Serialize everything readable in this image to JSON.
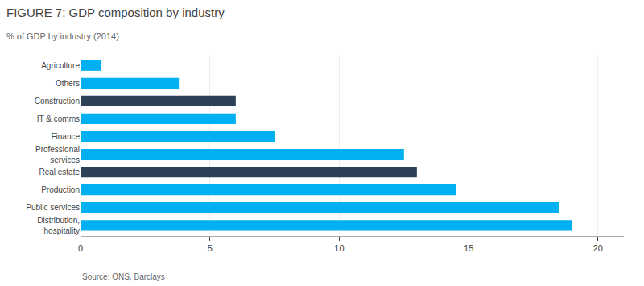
{
  "chart_data": {
    "type": "bar",
    "orientation": "horizontal",
    "title": "FIGURE 7: GDP composition by industry",
    "subtitle": "% of GDP by industry (2014)",
    "annotations": [
      "Source: ONS, Barclays"
    ],
    "categories": [
      "Distribution,\nhospitality",
      "Public services",
      "Production",
      "Real estate",
      "Professional\nservices",
      "Finance",
      "IT & comms",
      "Construction",
      "Others",
      "Agriculture"
    ],
    "values": [
      19.0,
      18.5,
      14.5,
      13.0,
      12.5,
      7.5,
      6.0,
      6.0,
      3.8,
      0.8
    ],
    "colors": [
      "#00b0f0",
      "#00b0f0",
      "#00b0f0",
      "#2e4057",
      "#00b0f0",
      "#00b0f0",
      "#00b0f0",
      "#2e4057",
      "#00b0f0",
      "#00b0f0"
    ],
    "xlim": [
      0,
      21
    ],
    "xticks": [
      0,
      5,
      10,
      15,
      20
    ],
    "grid": true
  }
}
